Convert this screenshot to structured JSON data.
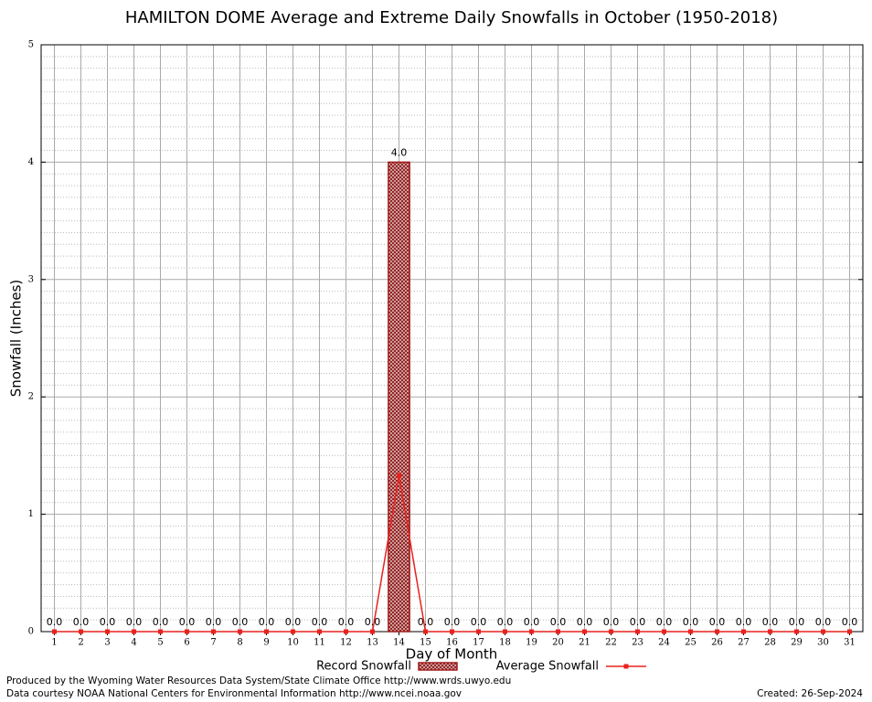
{
  "chart_data": {
    "type": "bar",
    "title": "HAMILTON DOME Average and Extreme Daily Snowfalls in October (1950-2018)",
    "x_label": "Day of Month",
    "y_label": "Snowfall (Inches)",
    "categories": [
      "1",
      "2",
      "3",
      "4",
      "5",
      "6",
      "7",
      "8",
      "9",
      "10",
      "11",
      "12",
      "13",
      "14",
      "15",
      "16",
      "17",
      "18",
      "19",
      "20",
      "21",
      "22",
      "23",
      "24",
      "25",
      "26",
      "27",
      "28",
      "29",
      "30",
      "31"
    ],
    "ylim": [
      0,
      5
    ],
    "yticks": [
      0,
      1,
      2,
      3,
      4,
      5
    ],
    "grid": true,
    "legend": "bottom",
    "series": [
      {
        "name": "Record Snowfall",
        "type": "bar",
        "color": "#a11a1a",
        "values": [
          0,
          0,
          0,
          0,
          0,
          0,
          0,
          0,
          0,
          0,
          0,
          0,
          0,
          4,
          0,
          0,
          0,
          0,
          0,
          0,
          0,
          0,
          0,
          0,
          0,
          0,
          0,
          0,
          0,
          0,
          0
        ],
        "value_labels": [
          "0.0",
          "0.0",
          "0.0",
          "0.0",
          "0.0",
          "0.0",
          "0.0",
          "0.0",
          "0.0",
          "0.0",
          "0.0",
          "0.0",
          "0.0",
          "4.0",
          "0.0",
          "0.0",
          "0.0",
          "0.0",
          "0.0",
          "0.0",
          "0.0",
          "0.0",
          "0.0",
          "0.0",
          "0.0",
          "0.0",
          "0.0",
          "0.0",
          "0.0",
          "0.0",
          "0.0"
        ]
      },
      {
        "name": "Average Snowfall",
        "type": "line",
        "color": "#e8221f",
        "values": [
          0,
          0,
          0,
          0,
          0,
          0,
          0,
          0,
          0,
          0,
          0,
          0,
          0,
          1.33,
          0,
          0,
          0,
          0,
          0,
          0,
          0,
          0,
          0,
          0,
          0,
          0,
          0,
          0,
          0,
          0,
          0
        ]
      }
    ]
  },
  "footer": {
    "produced": "Produced by the Wyoming Water Resources Data System/State Climate Office http://www.wrds.uwyo.edu",
    "courtesy": "Data courtesy NOAA National Centers for Environmental Information http://www.ncei.noaa.gov",
    "created": "Created:  26-Sep-2024"
  }
}
